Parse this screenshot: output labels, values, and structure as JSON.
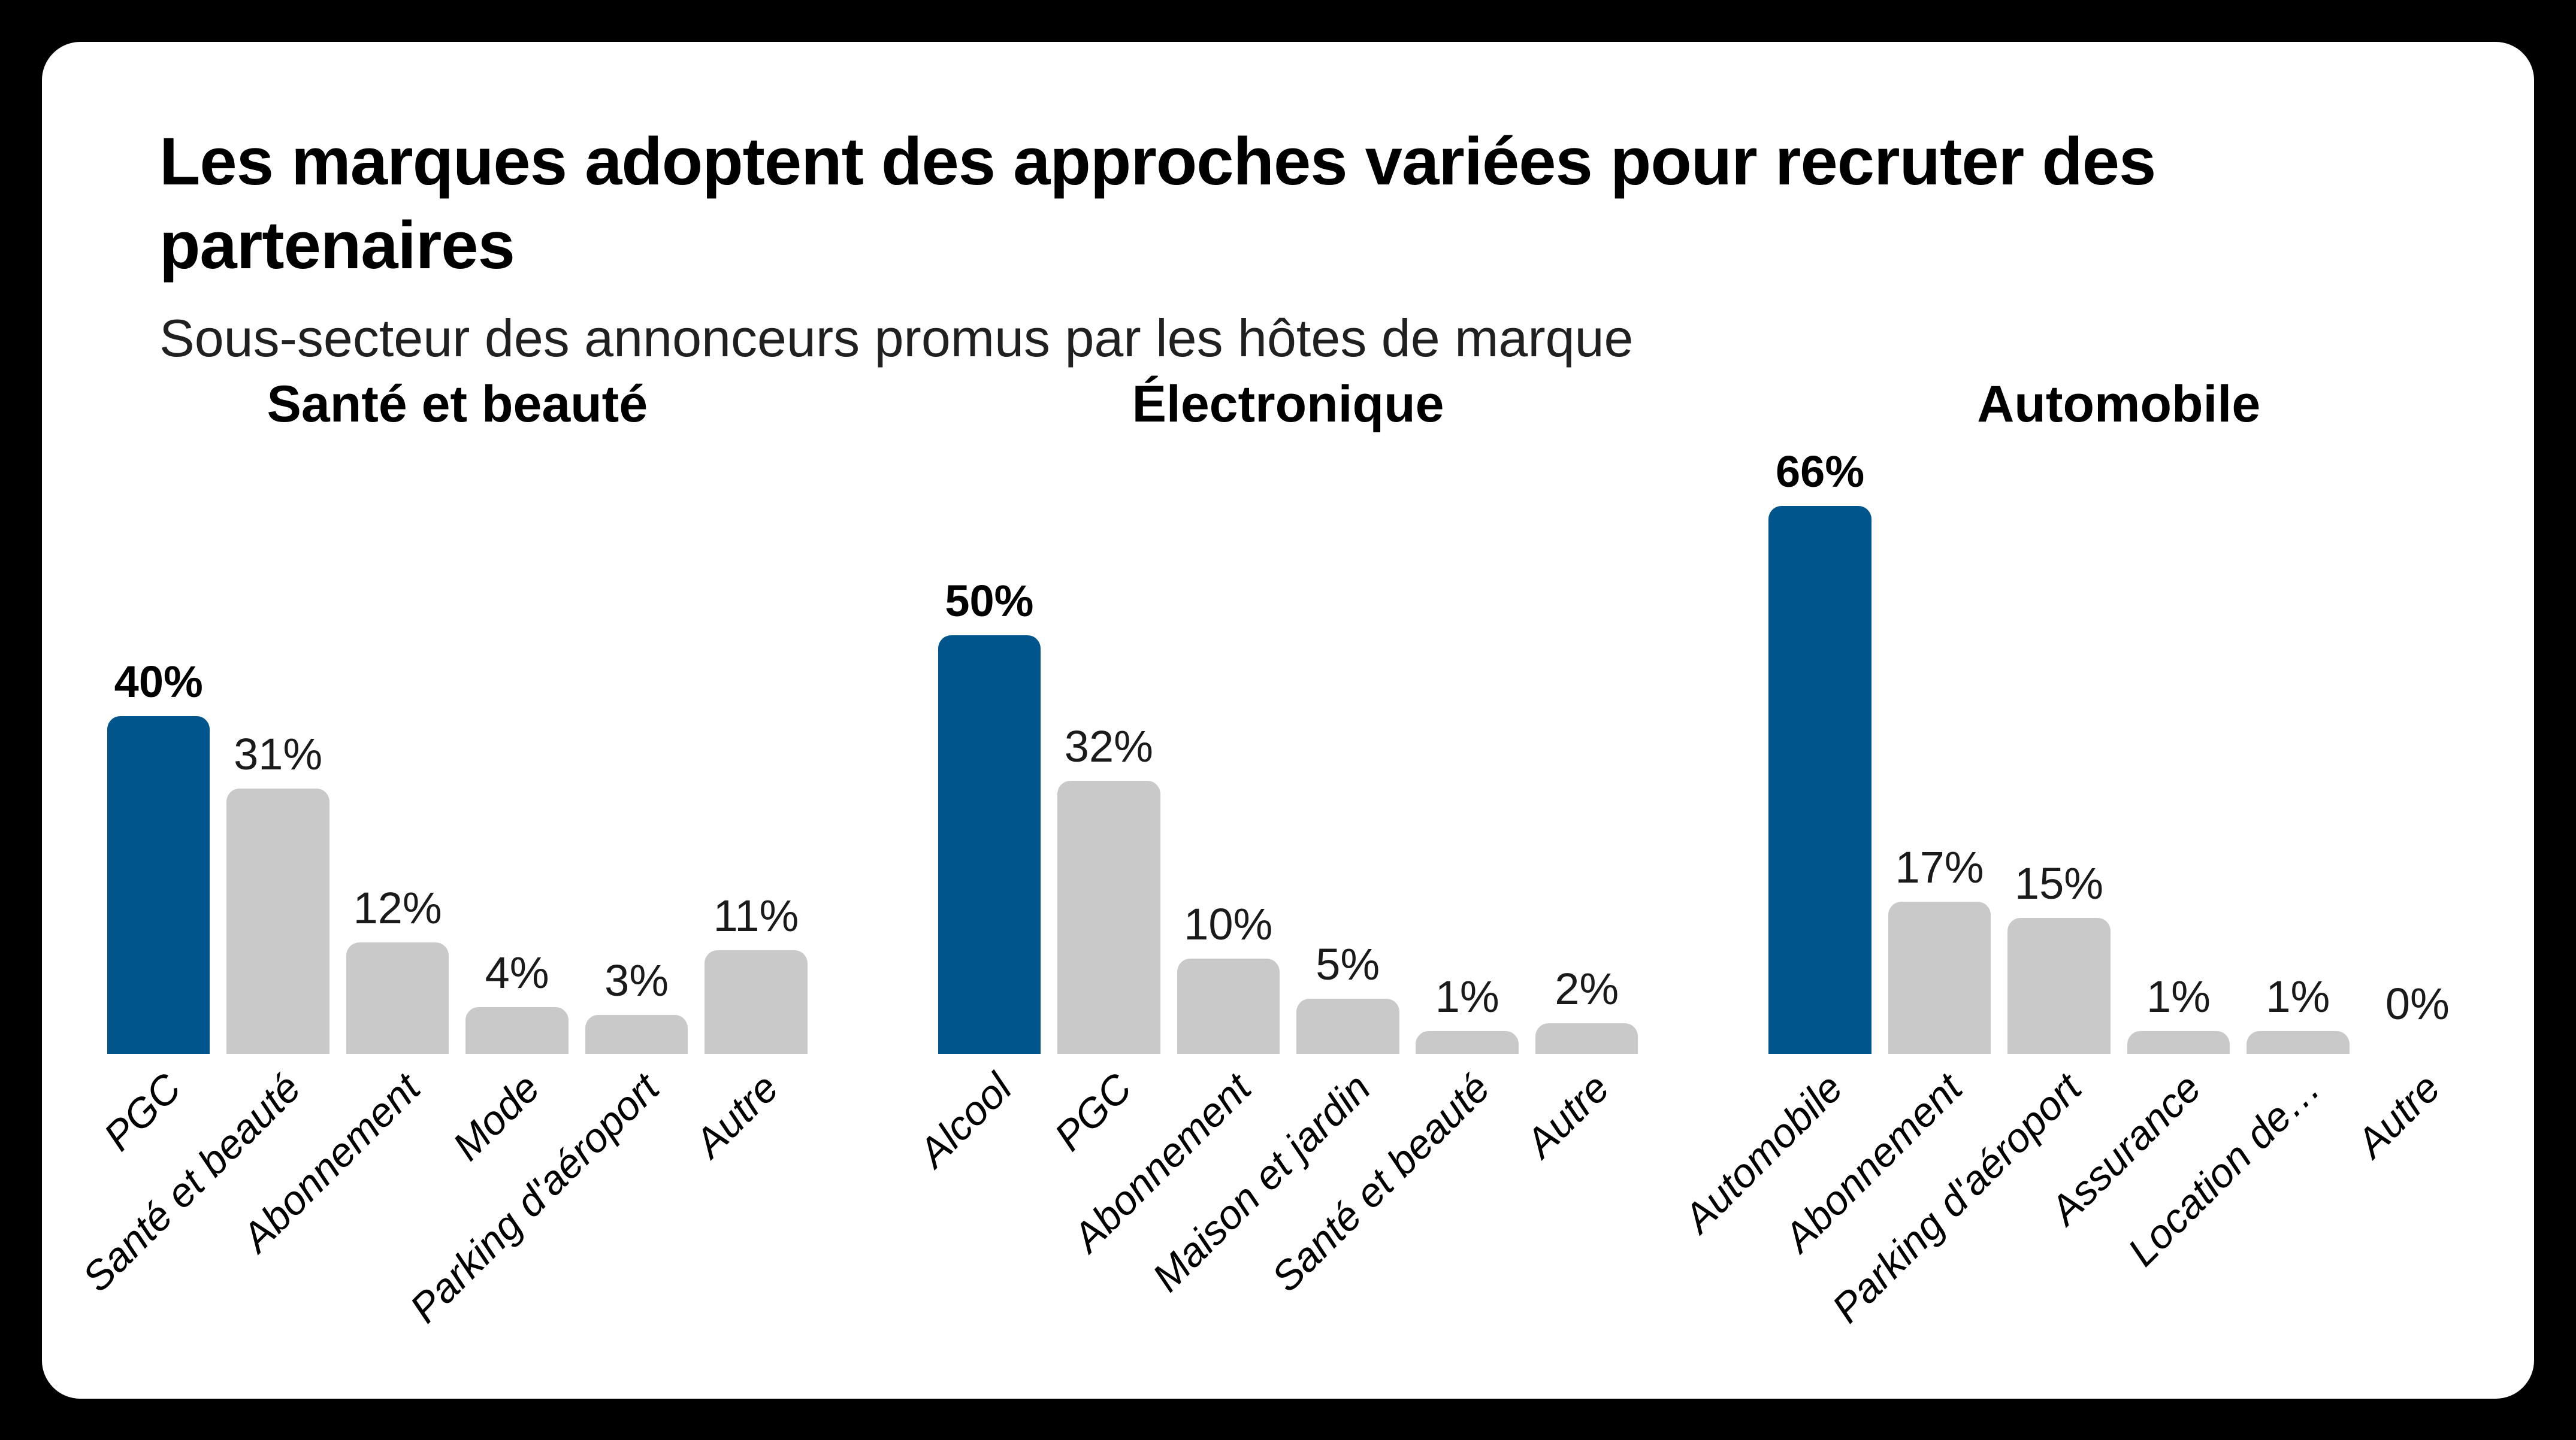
{
  "header": {
    "title": "Les marques adoptent des approches variées pour recruter des partenaires",
    "subtitle": "Sous-secteur des annonceurs promus par les hôtes de marque"
  },
  "colors": {
    "background": "#000000",
    "card": "#FFFFFF",
    "highlight_bar": "#00568C",
    "muted_bar": "#C9C9C9",
    "title_text": "#000000",
    "subtitle_text": "#202020"
  },
  "chart_data": [
    {
      "type": "bar",
      "title": "Santé et beauté",
      "categories": [
        "PGC",
        "Santé et beauté",
        "Abonnement",
        "Mode",
        "Parking d'aéroport",
        "Autre"
      ],
      "values": [
        40,
        31,
        12,
        4,
        3,
        11
      ],
      "value_labels": [
        "40%",
        "31%",
        "12%",
        "4%",
        "3%",
        "11%"
      ],
      "highlight_index": 0,
      "ylim": [
        0,
        70
      ],
      "grid": false,
      "legend": "none",
      "value_label_position": "above",
      "xlabel_rotation_deg": -45
    },
    {
      "type": "bar",
      "title": "Électronique",
      "categories": [
        "Alcool",
        "PGC",
        "Abonnement",
        "Maison et jardin",
        "Santé et beauté",
        "Autre"
      ],
      "values": [
        50,
        32,
        10,
        5,
        1,
        2
      ],
      "value_labels": [
        "50%",
        "32%",
        "10%",
        "5%",
        "1%",
        "2%"
      ],
      "highlight_index": 0,
      "ylim": [
        0,
        70
      ],
      "grid": false,
      "legend": "none",
      "value_label_position": "above",
      "xlabel_rotation_deg": -45
    },
    {
      "type": "bar",
      "title": "Automobile",
      "categories": [
        "Automobile",
        "Abonnement",
        "Parking d'aéroport",
        "Assurance",
        "Location de…",
        "Autre"
      ],
      "values": [
        66,
        17,
        15,
        1,
        1,
        0
      ],
      "value_labels": [
        "66%",
        "17%",
        "15%",
        "1%",
        "1%",
        "0%"
      ],
      "highlight_index": 0,
      "ylim": [
        0,
        70
      ],
      "grid": false,
      "legend": "none",
      "value_label_position": "above",
      "xlabel_rotation_deg": -45
    }
  ]
}
